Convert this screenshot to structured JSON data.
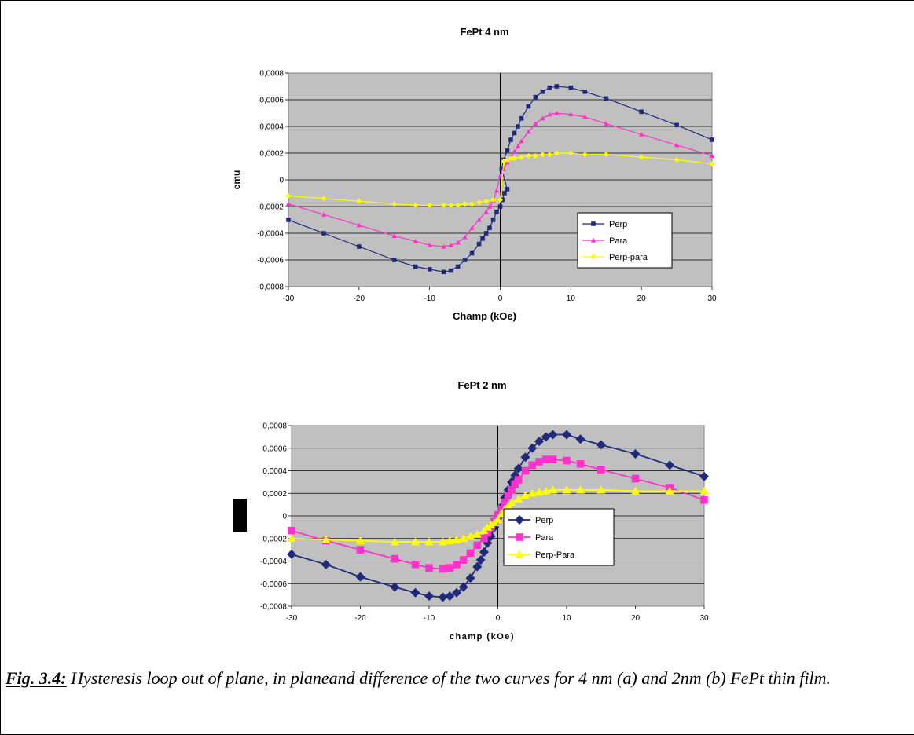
{
  "chart_data": [
    {
      "type": "line",
      "title": "FePt 4 nm",
      "xlabel": "Champ (kOe)",
      "ylabel": "emu",
      "xlim": [
        -30,
        30
      ],
      "ylim": [
        -0.0008,
        0.0008
      ],
      "xticks": [
        "-30",
        "-20",
        "-10",
        "0",
        "10",
        "20",
        "30"
      ],
      "yticks": [
        "0,0008",
        "0,0006",
        "0,0004",
        "0,0002",
        "0",
        "-0,0002",
        "-0,0004",
        "-0,0006",
        "-0,0008"
      ],
      "grid": true,
      "legend_position": "right",
      "series": [
        {
          "name": "Perp",
          "color": "#1f2a7a",
          "marker": "square",
          "x": [
            -30,
            -25,
            -20,
            -15,
            -12,
            -10,
            -8,
            -7,
            -6,
            -5,
            -4,
            -3,
            -2.5,
            -2,
            -1.5,
            -1,
            -0.5,
            0,
            0.3,
            0.6,
            1,
            0.2,
            0.5,
            1,
            1.5,
            2,
            2.5,
            3,
            4,
            5,
            6,
            7,
            8,
            10,
            12,
            15,
            20,
            25,
            30
          ],
          "y": [
            -0.0003,
            -0.0004,
            -0.0005,
            -0.0006,
            -0.00065,
            -0.00067,
            -0.00069,
            -0.00068,
            -0.00065,
            -0.0006,
            -0.00055,
            -0.00048,
            -0.00044,
            -0.0004,
            -0.00036,
            -0.0003,
            -0.00024,
            -0.0002,
            -0.00015,
            -0.0001,
            -7e-05,
            8e-05,
            0.00015,
            0.00022,
            0.0003,
            0.00035,
            0.0004,
            0.00046,
            0.00055,
            0.00062,
            0.00066,
            0.00069,
            0.0007,
            0.00069,
            0.00066,
            0.00061,
            0.00051,
            0.00041,
            0.0003
          ]
        },
        {
          "name": "Para",
          "color": "#ff33cc",
          "marker": "triangle",
          "x": [
            -30,
            -25,
            -20,
            -15,
            -12,
            -10,
            -8,
            -7,
            -6,
            -5,
            -4,
            -3,
            -2,
            -1.5,
            -1,
            -0.5,
            0,
            0.5,
            1,
            1.5,
            2,
            2.5,
            3,
            4,
            5,
            6,
            7,
            8,
            10,
            12,
            15,
            20,
            25,
            30
          ],
          "y": [
            -0.00018,
            -0.00026,
            -0.00034,
            -0.00042,
            -0.00046,
            -0.00049,
            -0.0005,
            -0.00049,
            -0.00047,
            -0.00043,
            -0.00036,
            -0.0003,
            -0.00024,
            -0.0002,
            -0.00016,
            -8e-05,
            3e-05,
            8e-05,
            0.00013,
            0.00017,
            0.00021,
            0.00025,
            0.00029,
            0.00036,
            0.00042,
            0.00046,
            0.00049,
            0.0005,
            0.00049,
            0.00047,
            0.00042,
            0.00034,
            0.00026,
            0.00018
          ]
        },
        {
          "name": "Perp-para",
          "color": "#ffff00",
          "marker": "diamond",
          "x": [
            -30,
            -25,
            -20,
            -15,
            -12,
            -10,
            -8,
            -7,
            -6,
            -5,
            -4,
            -3,
            -2,
            -1,
            0,
            0.5,
            1,
            1.5,
            2,
            3,
            4,
            5,
            6,
            7,
            8,
            10,
            12,
            15,
            20,
            25,
            30
          ],
          "y": [
            -0.00012,
            -0.00014,
            -0.00016,
            -0.00018,
            -0.00019,
            -0.00019,
            -0.00019,
            -0.00019,
            -0.00019,
            -0.00018,
            -0.00018,
            -0.00017,
            -0.00016,
            -0.00015,
            -0.00015,
            0.00014,
            0.00015,
            0.00016,
            0.00016,
            0.00017,
            0.00018,
            0.00018,
            0.00019,
            0.00019,
            0.0002,
            0.0002,
            0.00019,
            0.00019,
            0.00017,
            0.00015,
            0.00012
          ]
        }
      ]
    },
    {
      "type": "line",
      "title": "FePt 2 nm",
      "xlabel": "champ (kOe)",
      "ylabel": "",
      "xlim": [
        -30,
        30
      ],
      "ylim": [
        -0.0008,
        0.0008
      ],
      "xticks": [
        "-30",
        "-20",
        "-10",
        "0",
        "10",
        "20",
        "30"
      ],
      "yticks": [
        "0,0008",
        "0,0006",
        "0,0004",
        "0,0002",
        "0",
        "-0,0002",
        "-0,0004",
        "-0,0006",
        "-0,0008"
      ],
      "grid": true,
      "legend_position": "right",
      "series": [
        {
          "name": "Perp",
          "color": "#1f2a7a",
          "marker": "diamond",
          "x": [
            -30,
            -25,
            -20,
            -15,
            -12,
            -10,
            -8,
            -7,
            -6,
            -5,
            -4,
            -3,
            -2.5,
            -2,
            -1.5,
            -1,
            -0.5,
            0,
            0.5,
            1,
            1.5,
            2,
            2.5,
            3,
            4,
            5,
            6,
            7,
            8,
            10,
            12,
            15,
            20,
            25,
            30
          ],
          "y": [
            -0.00034,
            -0.00043,
            -0.00054,
            -0.00063,
            -0.00068,
            -0.00071,
            -0.00072,
            -0.00071,
            -0.00068,
            -0.00063,
            -0.00055,
            -0.00045,
            -0.00039,
            -0.00032,
            -0.00024,
            -0.00018,
            -0.0001,
            -2e-05,
            8e-05,
            0.00016,
            0.00023,
            0.0003,
            0.00036,
            0.00042,
            0.00052,
            0.0006,
            0.00066,
            0.0007,
            0.00072,
            0.00072,
            0.00068,
            0.00063,
            0.00055,
            0.00045,
            0.00035
          ]
        },
        {
          "name": "Para",
          "color": "#ff33cc",
          "marker": "square",
          "x": [
            -30,
            -25,
            -20,
            -15,
            -12,
            -10,
            -8,
            -7,
            -6,
            -5,
            -4,
            -3,
            -2,
            -1.5,
            -1,
            -0.5,
            0,
            0.5,
            1,
            1.5,
            2,
            2.5,
            3,
            4,
            5,
            6,
            7,
            8,
            10,
            12,
            15,
            20,
            25,
            30
          ],
          "y": [
            -0.00013,
            -0.00022,
            -0.0003,
            -0.00038,
            -0.00043,
            -0.00046,
            -0.00047,
            -0.00046,
            -0.00043,
            -0.00039,
            -0.00033,
            -0.00026,
            -0.0002,
            -0.00015,
            -0.0001,
            -5e-05,
            1e-05,
            6e-05,
            0.00012,
            0.00018,
            0.00023,
            0.00028,
            0.00032,
            0.0004,
            0.00045,
            0.00048,
            0.0005,
            0.0005,
            0.00049,
            0.00046,
            0.00041,
            0.00033,
            0.00025,
            0.00014
          ]
        },
        {
          "name": "Perp-Para",
          "color": "#ffff00",
          "marker": "triangle",
          "x": [
            -30,
            -25,
            -20,
            -15,
            -12,
            -10,
            -8,
            -7,
            -6,
            -5,
            -4,
            -3,
            -2,
            -1.5,
            -1,
            -0.5,
            0,
            0.5,
            1,
            1.5,
            2,
            3,
            4,
            5,
            6,
            7,
            8,
            10,
            12,
            15,
            20,
            25,
            30
          ],
          "y": [
            -0.0002,
            -0.00021,
            -0.00022,
            -0.00023,
            -0.00023,
            -0.00023,
            -0.00023,
            -0.00022,
            -0.00021,
            -0.0002,
            -0.00018,
            -0.00016,
            -0.00013,
            -0.0001,
            -8e-05,
            -6e-05,
            -3e-05,
            2e-05,
            6e-05,
            9e-05,
            0.00012,
            0.00015,
            0.00018,
            0.0002,
            0.00021,
            0.00022,
            0.00023,
            0.00023,
            0.00023,
            0.00023,
            0.00022,
            0.00022,
            0.00022
          ]
        }
      ]
    }
  ],
  "caption": {
    "lead": "Fig. 3.4:",
    "text": " Hysteresis loop out of plane, in planeand difference of the two curves  for 4 nm (a) and 2nm (b) FePt thin film."
  }
}
